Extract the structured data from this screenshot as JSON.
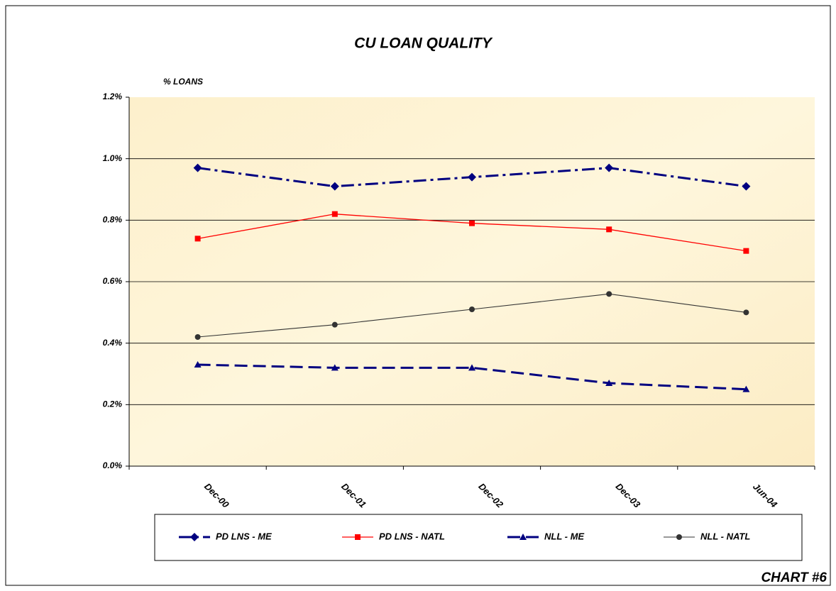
{
  "chart_data": {
    "type": "line",
    "title": "CU LOAN QUALITY",
    "y_label": "% LOANS",
    "footer": "CHART #6",
    "categories": [
      "Dec-00",
      "Dec-01",
      "Dec-02",
      "Dec-03",
      "Jun-04"
    ],
    "series": [
      {
        "name": "PD LNS - ME",
        "color": "#000080",
        "line_style": "dashdot",
        "marker": "diamond",
        "values": [
          0.97,
          0.91,
          0.94,
          0.97,
          0.91
        ]
      },
      {
        "name": "PD LNS - NATL",
        "color": "#ff0000",
        "line_style": "solid",
        "marker": "square",
        "values": [
          0.74,
          0.82,
          0.79,
          0.77,
          0.7
        ]
      },
      {
        "name": "NLL - ME",
        "color": "#000080",
        "line_style": "dashed",
        "marker": "triangle",
        "values": [
          0.33,
          0.32,
          0.32,
          0.27,
          0.25
        ]
      },
      {
        "name": "NLL - NATL",
        "color": "#333333",
        "line_style": "solid",
        "marker": "circle",
        "values": [
          0.42,
          0.46,
          0.51,
          0.56,
          0.5
        ]
      }
    ],
    "ylim": [
      0,
      1.2
    ],
    "yticks": [
      {
        "value": 0,
        "label": "0.0%"
      },
      {
        "value": 0.2,
        "label": "0.2%"
      },
      {
        "value": 0.4,
        "label": "0.4%"
      },
      {
        "value": 0.6,
        "label": "0.6%"
      },
      {
        "value": 0.8,
        "label": "0.8%"
      },
      {
        "value": 1.0,
        "label": "1.0%"
      },
      {
        "value": 1.2,
        "label": "1.2%"
      }
    ],
    "grid": true,
    "legend": "bottom"
  }
}
